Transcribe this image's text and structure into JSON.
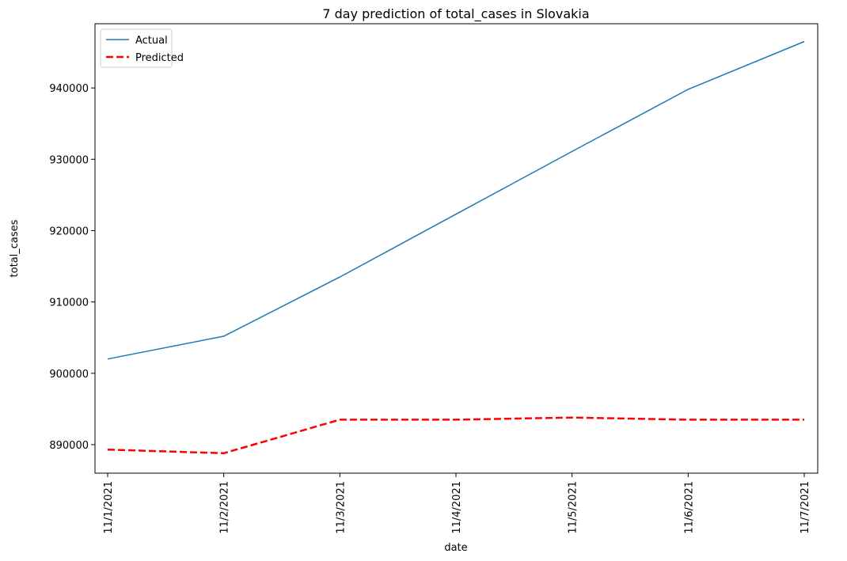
{
  "chart_data": {
    "type": "line",
    "title": "7 day prediction of total_cases in Slovakia",
    "xlabel": "date",
    "ylabel": "total_cases",
    "categories": [
      "11/1/2021",
      "11/2/2021",
      "11/3/2021",
      "11/4/2021",
      "11/5/2021",
      "11/6/2021",
      "11/7/2021"
    ],
    "ylim": [
      886000,
      949000
    ],
    "yticks": [
      890000,
      900000,
      910000,
      920000,
      930000,
      940000
    ],
    "ytick_labels": [
      "890000",
      "900000",
      "910000",
      "920000",
      "930000",
      "940000"
    ],
    "grid": false,
    "legend_position": "upper-left",
    "series": [
      {
        "name": "Actual",
        "color": "#1f77b4",
        "style": "solid",
        "values": [
          902000,
          905200,
          913500,
          922300,
          931100,
          939800,
          946500
        ]
      },
      {
        "name": "Predicted",
        "color": "#ff0000",
        "style": "dashed",
        "values": [
          889300,
          888800,
          893500,
          893500,
          893800,
          893500,
          893500
        ]
      }
    ]
  }
}
